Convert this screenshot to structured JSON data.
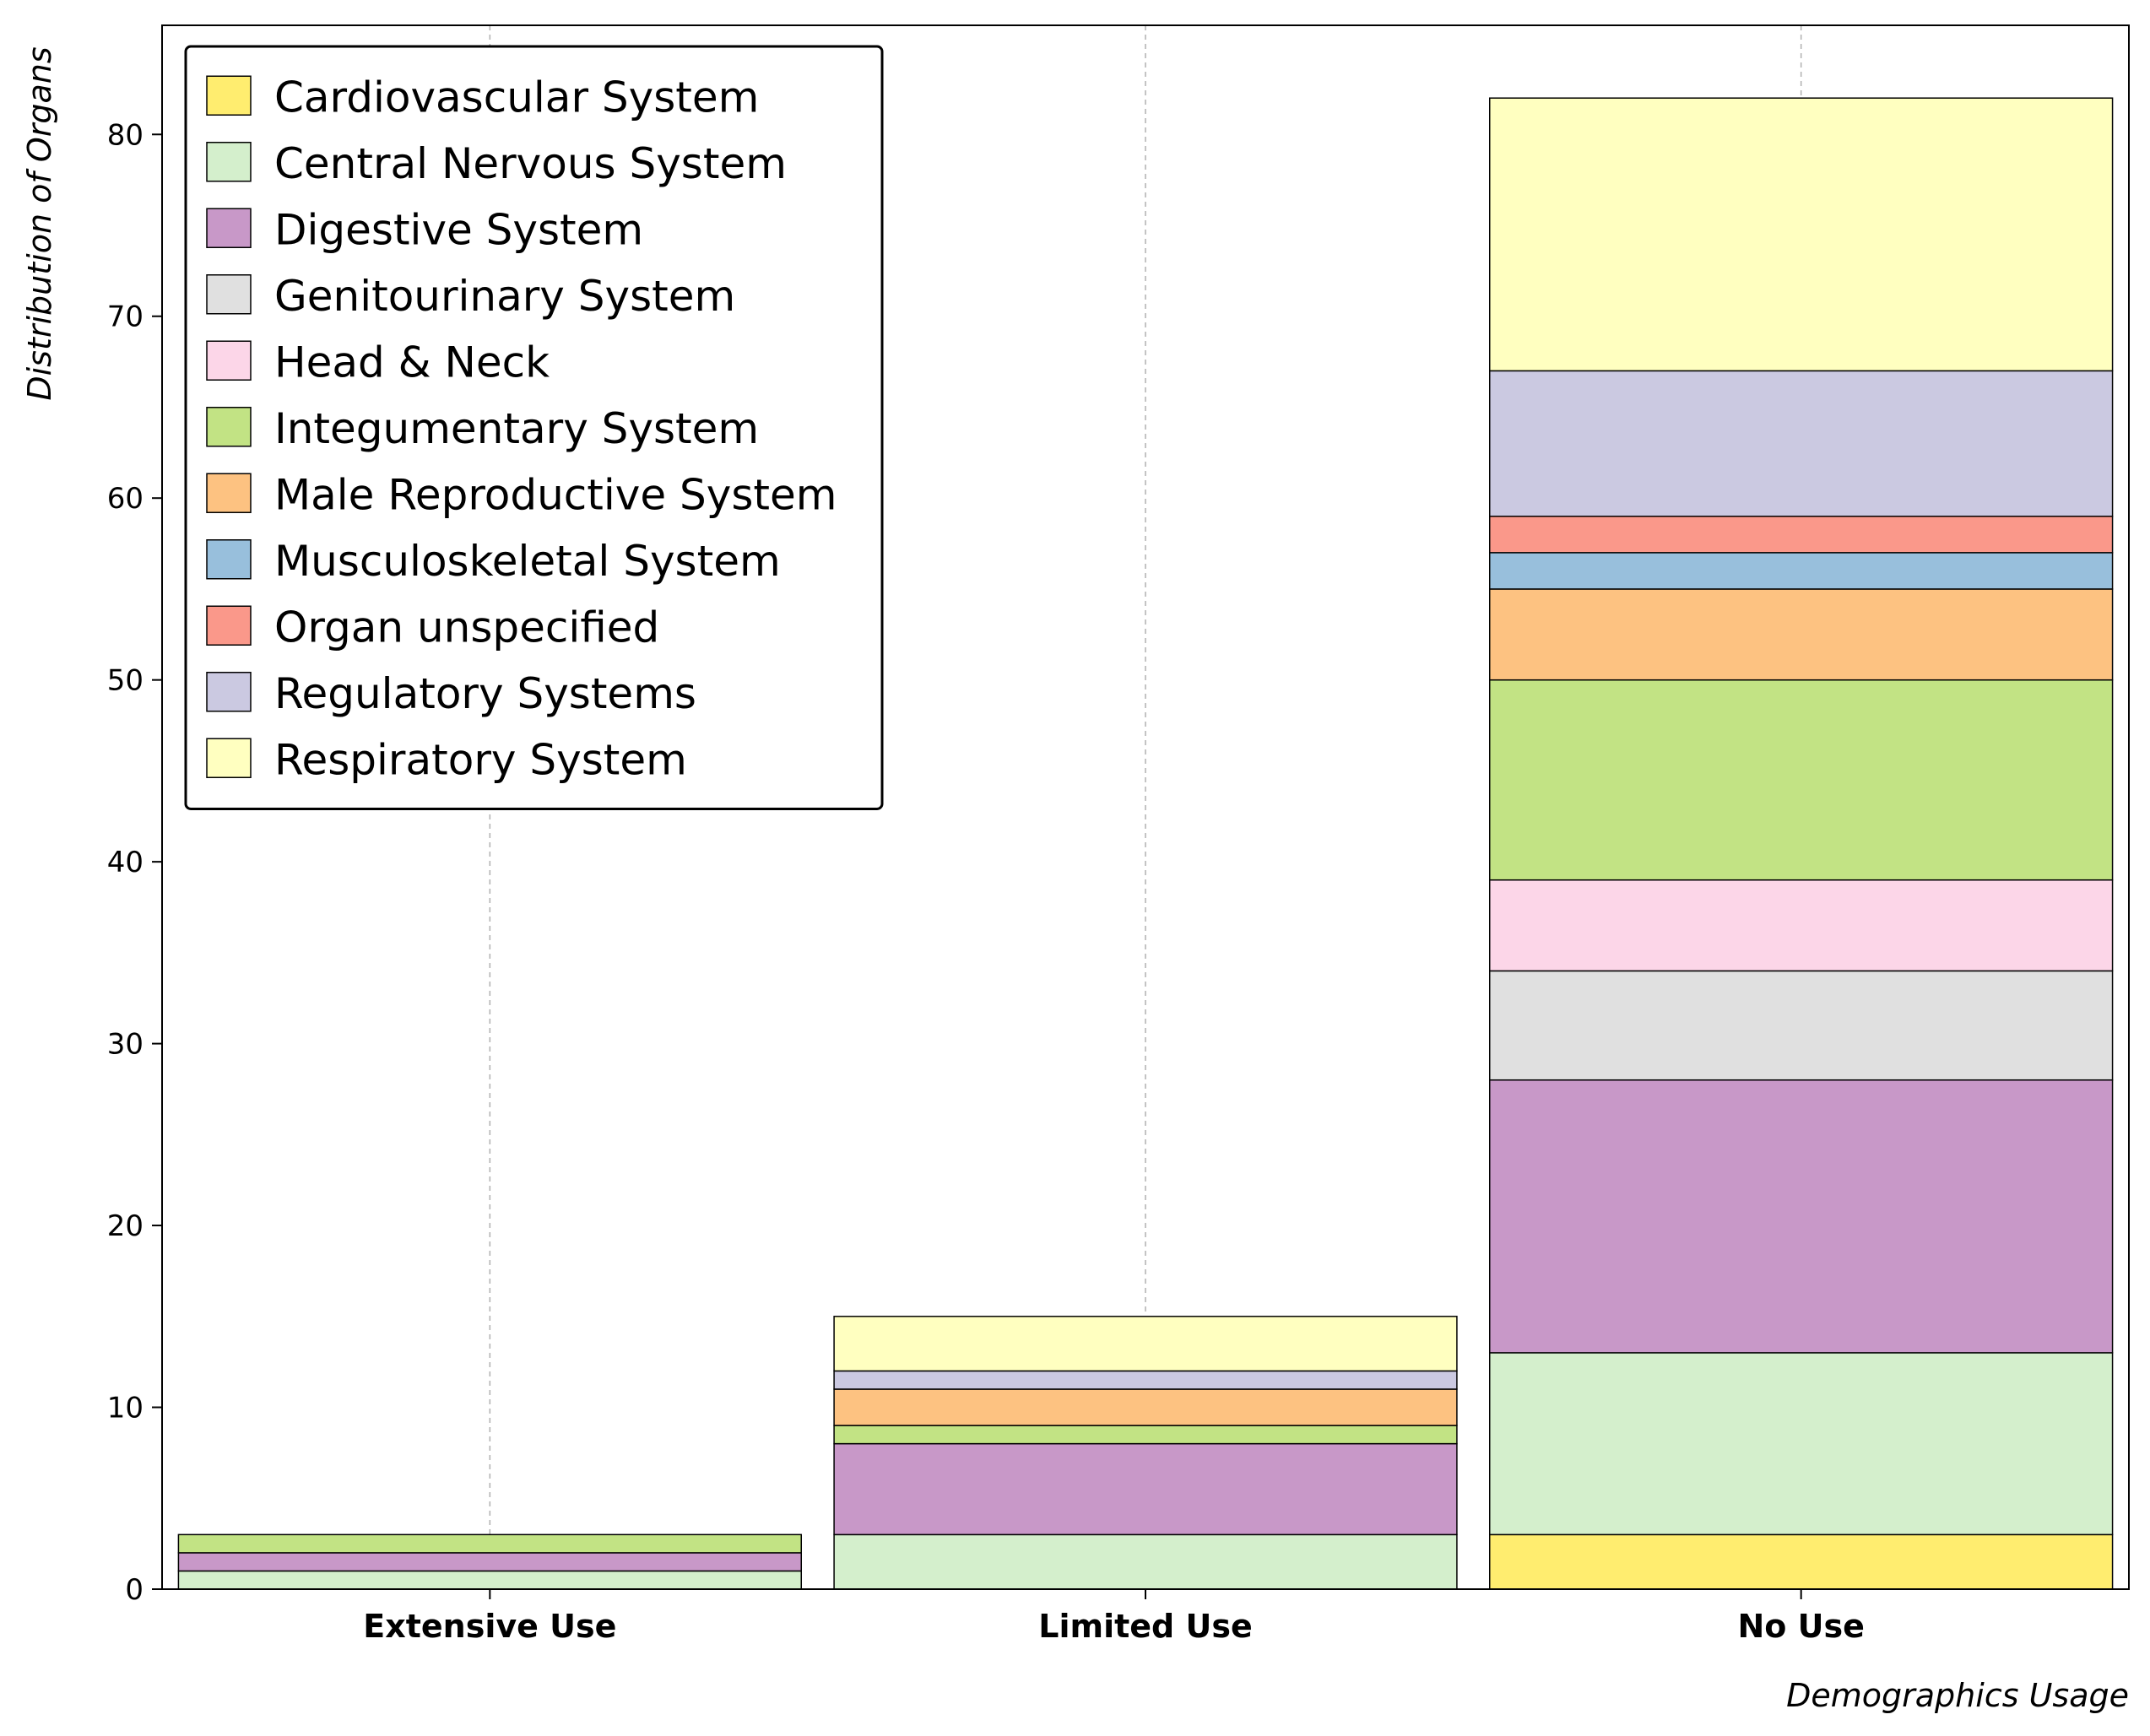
{
  "chart_data": {
    "type": "bar",
    "stacked": true,
    "categories": [
      "Extensive Use",
      "Limited Use",
      "No Use"
    ],
    "xlabel": "Demographics Usage",
    "ylabel": "Distribution of Organs",
    "ylim": [
      0,
      86
    ],
    "yticks": [
      0,
      10,
      20,
      30,
      40,
      50,
      60,
      70,
      80
    ],
    "grid": "vertical dashed",
    "legend_position": "top-left",
    "series": [
      {
        "name": "Cardiovascular System",
        "color": "#ffed6f",
        "values": [
          0,
          0,
          3
        ]
      },
      {
        "name": "Central Nervous System",
        "color": "#d4efcc",
        "values": [
          1,
          3,
          10
        ]
      },
      {
        "name": "Digestive System",
        "color": "#c898c8",
        "values": [
          1,
          5,
          15
        ]
      },
      {
        "name": "Genitourinary System",
        "color": "#e0e0e0",
        "values": [
          0,
          0,
          6
        ]
      },
      {
        "name": "Head & Neck",
        "color": "#fcd6e8",
        "values": [
          0,
          0,
          5
        ]
      },
      {
        "name": "Integumentary System",
        "color": "#c2e384",
        "values": [
          1,
          1,
          11
        ]
      },
      {
        "name": "Male Reproductive System",
        "color": "#fdc281",
        "values": [
          0,
          2,
          5
        ]
      },
      {
        "name": "Musculoskeletal System",
        "color": "#98bfdc",
        "values": [
          0,
          0,
          2
        ]
      },
      {
        "name": "Organ unspecified",
        "color": "#fa988a",
        "values": [
          0,
          0,
          2
        ]
      },
      {
        "name": "Regulatory Systems",
        "color": "#cbc9e1",
        "values": [
          0,
          1,
          8
        ]
      },
      {
        "name": "Respiratory System",
        "color": "#ffffc0",
        "values": [
          0,
          3,
          15
        ]
      }
    ]
  }
}
